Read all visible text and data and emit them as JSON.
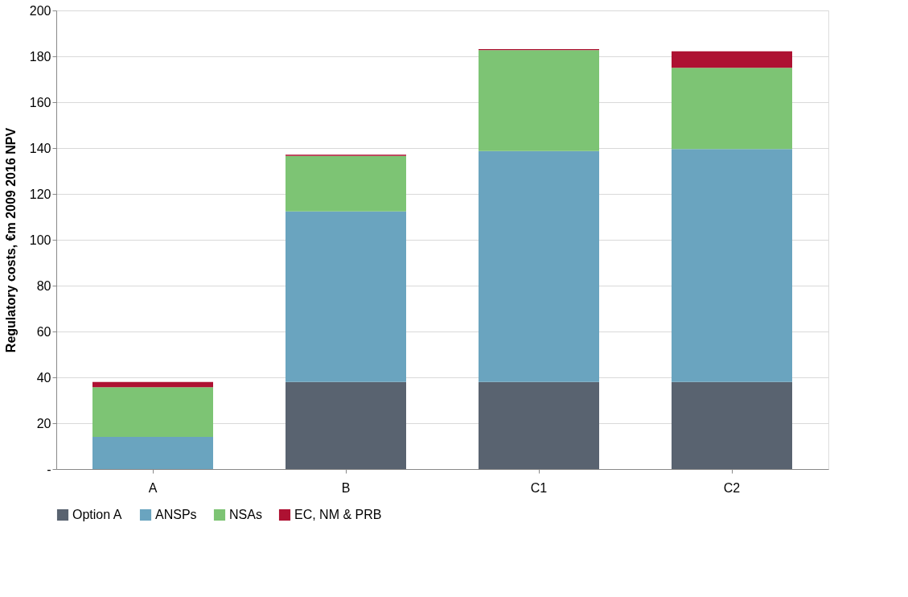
{
  "chart_data": {
    "type": "bar",
    "stacked": true,
    "ylabel": "Regulatory costs, €m 2009 2016 NPV",
    "categories": [
      "A",
      "B",
      "C1",
      "C2"
    ],
    "series": [
      {
        "name": "Option A",
        "color": "#596370",
        "values": [
          0,
          38,
          38,
          38
        ]
      },
      {
        "name": "ANSPs",
        "color": "#6aa4bf",
        "values": [
          14,
          74.4,
          100.7,
          101.6
        ]
      },
      {
        "name": "NSAs",
        "color": "#7dc474",
        "values": [
          21.7,
          24.2,
          44,
          35.4
        ]
      },
      {
        "name": "EC, NM & PRB",
        "color": "#ae1132",
        "values": [
          2.3,
          0.5,
          0.5,
          7.2
        ]
      }
    ],
    "ylim": [
      0,
      200
    ],
    "yticks": [
      {
        "value": 0,
        "label": "-"
      },
      20,
      40,
      60,
      80,
      100,
      120,
      140,
      160,
      180,
      200
    ],
    "grid": "y",
    "legend": "bottom"
  }
}
